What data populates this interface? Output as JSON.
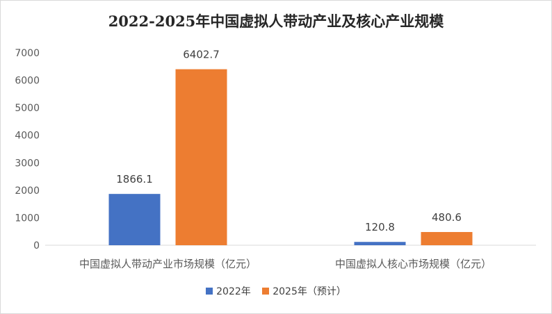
{
  "chart_data": {
    "type": "bar",
    "title": "2022-2025年中国虚拟人带动产业及核心产业规模",
    "categories": [
      "中国虚拟人带动产业市场规模（亿元）",
      "中国虚拟人核心市场规模（亿元）"
    ],
    "series": [
      {
        "name": "2022年",
        "values": [
          1866.1,
          120.8
        ],
        "color": "#4472c4"
      },
      {
        "name": "2025年（预计）",
        "values": [
          6402.7,
          480.6
        ],
        "color": "#ed7d31"
      }
    ],
    "ylim": [
      0,
      7000
    ],
    "yticks": [
      "0",
      "1000",
      "2000",
      "3000",
      "4000",
      "5000",
      "6000",
      "7000"
    ],
    "grid": false,
    "legend_position": "bottom",
    "data_labels": true
  }
}
